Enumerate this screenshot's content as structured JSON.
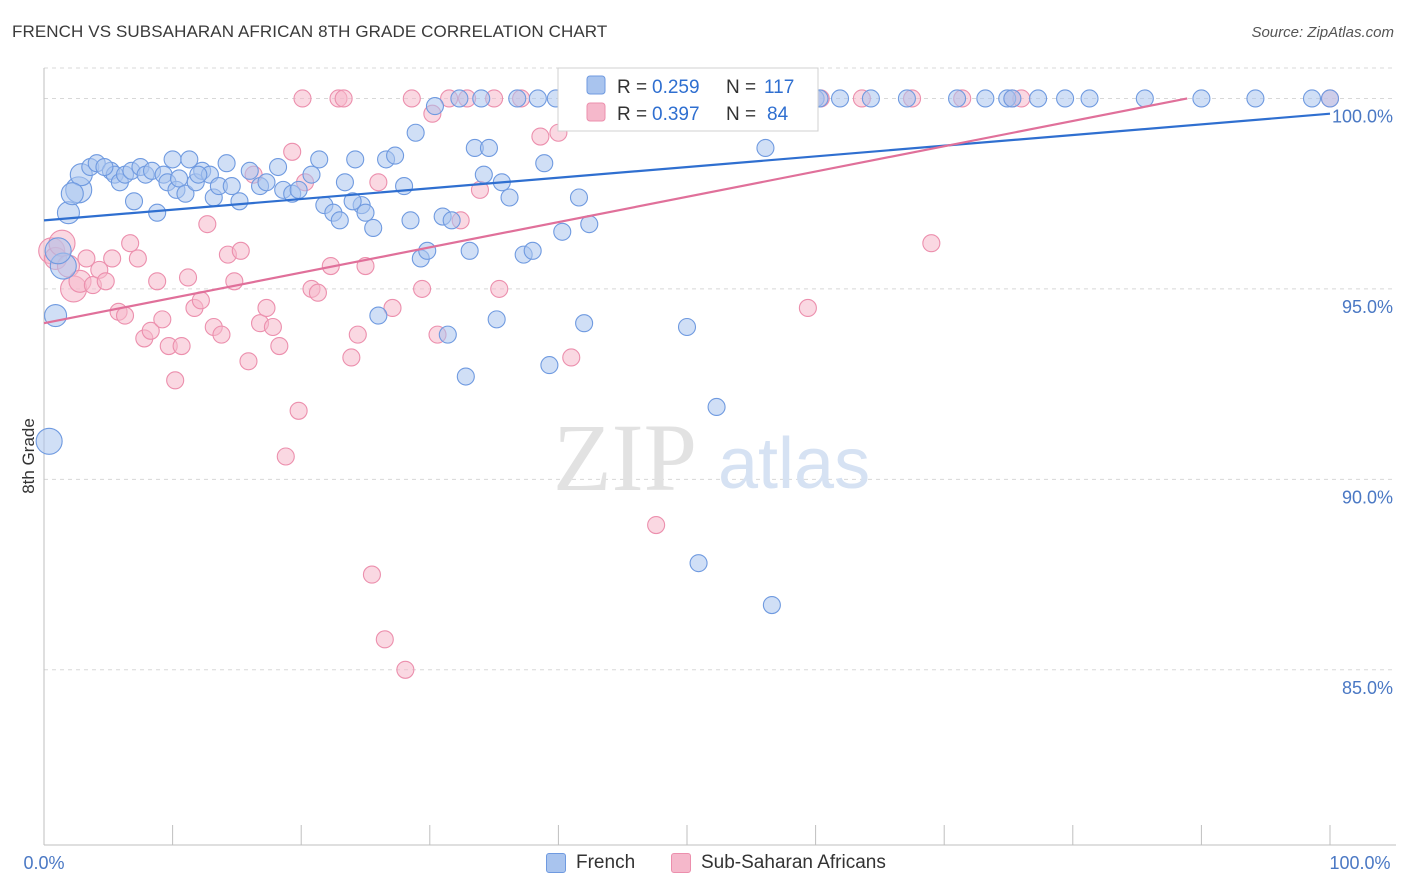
{
  "header": {
    "title": "FRENCH VS SUBSAHARAN AFRICAN 8TH GRADE CORRELATION CHART",
    "source": "Source: ZipAtlas.com"
  },
  "watermark": {
    "zip": "ZIP",
    "atlas": "atlas"
  },
  "colors": {
    "french_fill": "#a9c4ee",
    "french_stroke": "#6f9ae0",
    "french_line": "#2f6fd0",
    "ssa_fill": "#f5b8cb",
    "ssa_stroke": "#ec8fad",
    "ssa_line": "#e0709a",
    "value_text": "#2f6fd0",
    "tick_text": "#4a78c4",
    "grid": "#d8d8d8"
  },
  "stats_legend": {
    "french": {
      "r_label": "R =",
      "r_value": "0.259",
      "n_label": "N =",
      "n_value": "117"
    },
    "ssa": {
      "r_label": "R =",
      "r_value": "0.397",
      "n_label": "N =",
      "n_value": "84"
    }
  },
  "bottom_legend": {
    "french": "French",
    "ssa": "Sub-Saharan Africans"
  },
  "chart_data": {
    "type": "scatter",
    "title": "FRENCH VS SUBSAHARAN AFRICAN 8TH GRADE CORRELATION CHART",
    "xlabel": "",
    "ylabel": "8th Grade",
    "xlim": [
      0,
      100
    ],
    "ylim": [
      80.4,
      100.8
    ],
    "x_tick_labels": [
      "0.0%",
      "100.0%"
    ],
    "y_tick_labels": [
      "100.0%",
      "95.0%",
      "90.0%",
      "85.0%"
    ],
    "y_ticks": [
      100,
      95,
      90,
      85
    ],
    "grid": "horizontal dashed",
    "series": [
      {
        "name": "French",
        "trend": {
          "x": [
            0,
            100
          ],
          "y": [
            96.8,
            99.6
          ]
        },
        "points": [
          [
            0.4,
            91.0
          ],
          [
            0.9,
            94.3
          ],
          [
            1.5,
            95.6
          ],
          [
            1.9,
            97.0
          ],
          [
            2.7,
            97.6
          ],
          [
            2.9,
            98.0
          ],
          [
            3.6,
            98.2
          ],
          [
            4.1,
            98.3
          ],
          [
            5.2,
            98.1
          ],
          [
            5.5,
            98.0
          ],
          [
            5.9,
            97.8
          ],
          [
            6.3,
            98.0
          ],
          [
            6.8,
            98.1
          ],
          [
            7.0,
            97.3
          ],
          [
            7.5,
            98.2
          ],
          [
            7.9,
            98.0
          ],
          [
            8.4,
            98.1
          ],
          [
            8.8,
            97.0
          ],
          [
            9.3,
            98.0
          ],
          [
            9.6,
            97.8
          ],
          [
            10.0,
            98.4
          ],
          [
            10.3,
            97.6
          ],
          [
            10.5,
            97.9
          ],
          [
            11.0,
            97.5
          ],
          [
            11.3,
            98.4
          ],
          [
            11.8,
            97.8
          ],
          [
            12.3,
            98.1
          ],
          [
            12.9,
            98.0
          ],
          [
            13.2,
            97.4
          ],
          [
            13.6,
            97.7
          ],
          [
            14.2,
            98.3
          ],
          [
            14.6,
            97.7
          ],
          [
            15.2,
            97.3
          ],
          [
            16.0,
            98.1
          ],
          [
            16.8,
            97.7
          ],
          [
            17.3,
            97.8
          ],
          [
            18.2,
            98.2
          ],
          [
            18.6,
            97.6
          ],
          [
            19.3,
            97.5
          ],
          [
            19.8,
            97.6
          ],
          [
            20.8,
            98.0
          ],
          [
            21.4,
            98.4
          ],
          [
            21.8,
            97.2
          ],
          [
            22.5,
            97.0
          ],
          [
            23.0,
            96.8
          ],
          [
            23.4,
            97.8
          ],
          [
            24.2,
            98.4
          ],
          [
            24.7,
            97.2
          ],
          [
            25.0,
            97.0
          ],
          [
            25.6,
            96.6
          ],
          [
            26.0,
            94.3
          ],
          [
            26.6,
            98.4
          ],
          [
            27.3,
            98.5
          ],
          [
            28.0,
            97.7
          ],
          [
            28.5,
            96.8
          ],
          [
            28.9,
            99.1
          ],
          [
            29.3,
            95.8
          ],
          [
            29.8,
            96.0
          ],
          [
            30.4,
            99.8
          ],
          [
            31.0,
            96.9
          ],
          [
            31.4,
            93.8
          ],
          [
            31.7,
            96.8
          ],
          [
            32.3,
            100.0
          ],
          [
            32.8,
            92.7
          ],
          [
            33.1,
            96.0
          ],
          [
            33.5,
            98.7
          ],
          [
            34.0,
            100.0
          ],
          [
            34.2,
            98.0
          ],
          [
            34.6,
            98.7
          ],
          [
            35.2,
            94.2
          ],
          [
            35.6,
            97.8
          ],
          [
            36.2,
            97.4
          ],
          [
            36.8,
            100.0
          ],
          [
            37.3,
            95.9
          ],
          [
            38.0,
            96.0
          ],
          [
            38.4,
            100.0
          ],
          [
            38.9,
            98.3
          ],
          [
            39.3,
            93.0
          ],
          [
            39.8,
            100.0
          ],
          [
            40.3,
            96.5
          ],
          [
            41.0,
            100.0
          ],
          [
            41.6,
            97.4
          ],
          [
            42.0,
            94.1
          ],
          [
            42.4,
            96.7
          ],
          [
            43.2,
            100.0
          ],
          [
            44.0,
            100.0
          ],
          [
            45.1,
            100.0
          ],
          [
            46.1,
            100.0
          ],
          [
            47.0,
            100.0
          ],
          [
            48.0,
            100.0
          ],
          [
            48.9,
            100.0
          ],
          [
            49.3,
            100.0
          ],
          [
            50.0,
            94.0
          ],
          [
            50.5,
            100.0
          ],
          [
            50.9,
            87.8
          ],
          [
            51.5,
            100.0
          ],
          [
            52.0,
            100.0
          ],
          [
            52.3,
            91.9
          ],
          [
            53.0,
            100.0
          ],
          [
            53.6,
            100.0
          ],
          [
            54.2,
            100.0
          ],
          [
            55.0,
            100.0
          ],
          [
            56.1,
            98.7
          ],
          [
            56.6,
            86.7
          ],
          [
            57.3,
            100.0
          ],
          [
            60.0,
            100.0
          ],
          [
            60.3,
            100.0
          ],
          [
            61.9,
            100.0
          ],
          [
            64.3,
            100.0
          ],
          [
            67.1,
            100.0
          ],
          [
            71.0,
            100.0
          ],
          [
            73.2,
            100.0
          ],
          [
            74.9,
            100.0
          ],
          [
            75.3,
            100.0
          ],
          [
            77.3,
            100.0
          ],
          [
            79.4,
            100.0
          ],
          [
            81.3,
            100.0
          ],
          [
            85.6,
            100.0
          ],
          [
            90.0,
            100.0
          ],
          [
            94.2,
            100.0
          ],
          [
            98.6,
            100.0
          ],
          [
            100.0,
            100.0
          ],
          [
            1.1,
            96.0
          ],
          [
            2.2,
            97.5
          ],
          [
            4.7,
            98.2
          ],
          [
            12.0,
            98.0
          ],
          [
            24.0,
            97.3
          ]
        ]
      },
      {
        "name": "Sub-Saharan Africans",
        "trend": {
          "x": [
            0,
            88.9
          ],
          "y": [
            94.1,
            100.0
          ]
        },
        "points": [
          [
            0.6,
            96.0
          ],
          [
            0.9,
            95.8
          ],
          [
            1.4,
            96.2
          ],
          [
            1.9,
            95.6
          ],
          [
            2.3,
            95.0
          ],
          [
            2.8,
            95.2
          ],
          [
            3.3,
            95.8
          ],
          [
            3.8,
            95.1
          ],
          [
            4.3,
            95.5
          ],
          [
            4.8,
            95.2
          ],
          [
            5.3,
            95.8
          ],
          [
            5.8,
            94.4
          ],
          [
            6.3,
            94.3
          ],
          [
            6.7,
            96.2
          ],
          [
            7.3,
            95.8
          ],
          [
            7.8,
            93.7
          ],
          [
            8.3,
            93.9
          ],
          [
            8.8,
            95.2
          ],
          [
            9.2,
            94.2
          ],
          [
            9.7,
            93.5
          ],
          [
            10.2,
            92.6
          ],
          [
            10.7,
            93.5
          ],
          [
            11.2,
            95.3
          ],
          [
            11.7,
            94.5
          ],
          [
            12.2,
            94.7
          ],
          [
            12.7,
            96.7
          ],
          [
            13.2,
            94.0
          ],
          [
            13.8,
            93.8
          ],
          [
            14.3,
            95.9
          ],
          [
            14.8,
            95.2
          ],
          [
            15.3,
            96.0
          ],
          [
            15.9,
            93.1
          ],
          [
            16.3,
            98.0
          ],
          [
            16.8,
            94.1
          ],
          [
            17.3,
            94.5
          ],
          [
            17.8,
            94.0
          ],
          [
            18.3,
            93.5
          ],
          [
            18.8,
            90.6
          ],
          [
            19.3,
            98.6
          ],
          [
            19.8,
            91.8
          ],
          [
            20.3,
            97.8
          ],
          [
            20.8,
            95.0
          ],
          [
            21.3,
            94.9
          ],
          [
            22.3,
            95.6
          ],
          [
            22.9,
            100.0
          ],
          [
            23.3,
            100.0
          ],
          [
            23.9,
            93.2
          ],
          [
            24.4,
            93.8
          ],
          [
            25.0,
            95.6
          ],
          [
            25.5,
            87.5
          ],
          [
            26.0,
            97.8
          ],
          [
            26.5,
            85.8
          ],
          [
            27.1,
            94.5
          ],
          [
            28.1,
            85.0
          ],
          [
            28.6,
            100.0
          ],
          [
            29.4,
            95.0
          ],
          [
            30.2,
            99.6
          ],
          [
            30.6,
            93.8
          ],
          [
            31.5,
            100.0
          ],
          [
            32.4,
            96.8
          ],
          [
            32.9,
            100.0
          ],
          [
            33.9,
            97.6
          ],
          [
            35.0,
            100.0
          ],
          [
            35.4,
            95.0
          ],
          [
            37.1,
            100.0
          ],
          [
            38.6,
            99.0
          ],
          [
            40.0,
            99.1
          ],
          [
            41.0,
            93.2
          ],
          [
            43.0,
            100.0
          ],
          [
            47.1,
            100.0
          ],
          [
            47.6,
            88.8
          ],
          [
            51.9,
            100.0
          ],
          [
            52.6,
            100.0
          ],
          [
            56.6,
            100.0
          ],
          [
            59.4,
            94.5
          ],
          [
            60.4,
            100.0
          ],
          [
            63.6,
            100.0
          ],
          [
            67.5,
            100.0
          ],
          [
            69.0,
            96.2
          ],
          [
            71.4,
            100.0
          ],
          [
            75.3,
            100.0
          ],
          [
            76.0,
            100.0
          ],
          [
            100.0,
            100.0
          ],
          [
            20.1,
            100.0
          ]
        ]
      }
    ]
  }
}
